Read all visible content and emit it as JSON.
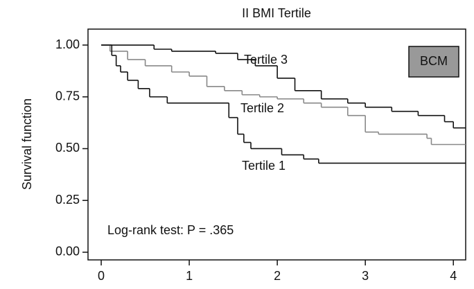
{
  "chart_data": {
    "type": "step",
    "title": "II BMI Tertile",
    "y_label": "Survival function",
    "box_label": "BCM",
    "annotation": "Log-rank test: P = .365",
    "xlim": [
      -0.15,
      4.14
    ],
    "ylim": [
      -0.037,
      1.077
    ],
    "xticks": [
      0,
      1,
      2,
      3,
      4
    ],
    "yticks": [
      {
        "value": 0,
        "label": "0.00"
      },
      {
        "value": 0.25,
        "label": "0.25"
      },
      {
        "value": 0.5,
        "label": "0.50"
      },
      {
        "value": 0.75,
        "label": "0.75"
      },
      {
        "value": 1,
        "label": "1.00"
      }
    ],
    "series": [
      {
        "name": "Tertile 3",
        "color": "#111111",
        "x": [
          0,
          0.6,
          0.8,
          1.3,
          1.55,
          1.75,
          2.0,
          2.2,
          2.5,
          2.8,
          3.0,
          3.3,
          3.6,
          3.9,
          4.0,
          4.14
        ],
        "values": [
          1.0,
          0.98,
          0.97,
          0.96,
          0.93,
          0.9,
          0.84,
          0.78,
          0.74,
          0.72,
          0.7,
          0.68,
          0.66,
          0.63,
          0.6,
          0.6
        ]
      },
      {
        "name": "Tertile 2",
        "color": "#888888",
        "x": [
          0,
          0.1,
          0.3,
          0.5,
          0.8,
          1.0,
          1.2,
          1.4,
          1.6,
          1.8,
          2.0,
          2.3,
          2.5,
          2.8,
          3.0,
          3.15,
          3.7,
          3.75,
          4.14
        ],
        "values": [
          1.0,
          0.97,
          0.93,
          0.9,
          0.87,
          0.85,
          0.8,
          0.78,
          0.76,
          0.75,
          0.74,
          0.72,
          0.7,
          0.66,
          0.58,
          0.57,
          0.55,
          0.52,
          0.52
        ]
      },
      {
        "name": "Tertile 1",
        "color": "#111111",
        "x": [
          0,
          0.12,
          0.17,
          0.22,
          0.3,
          0.42,
          0.55,
          0.75,
          1.45,
          1.55,
          1.62,
          1.7,
          2.05,
          2.3,
          2.47,
          4.14
        ],
        "values": [
          1.0,
          0.95,
          0.9,
          0.87,
          0.83,
          0.79,
          0.75,
          0.72,
          0.65,
          0.57,
          0.53,
          0.5,
          0.47,
          0.45,
          0.43,
          0.43
        ]
      }
    ]
  }
}
